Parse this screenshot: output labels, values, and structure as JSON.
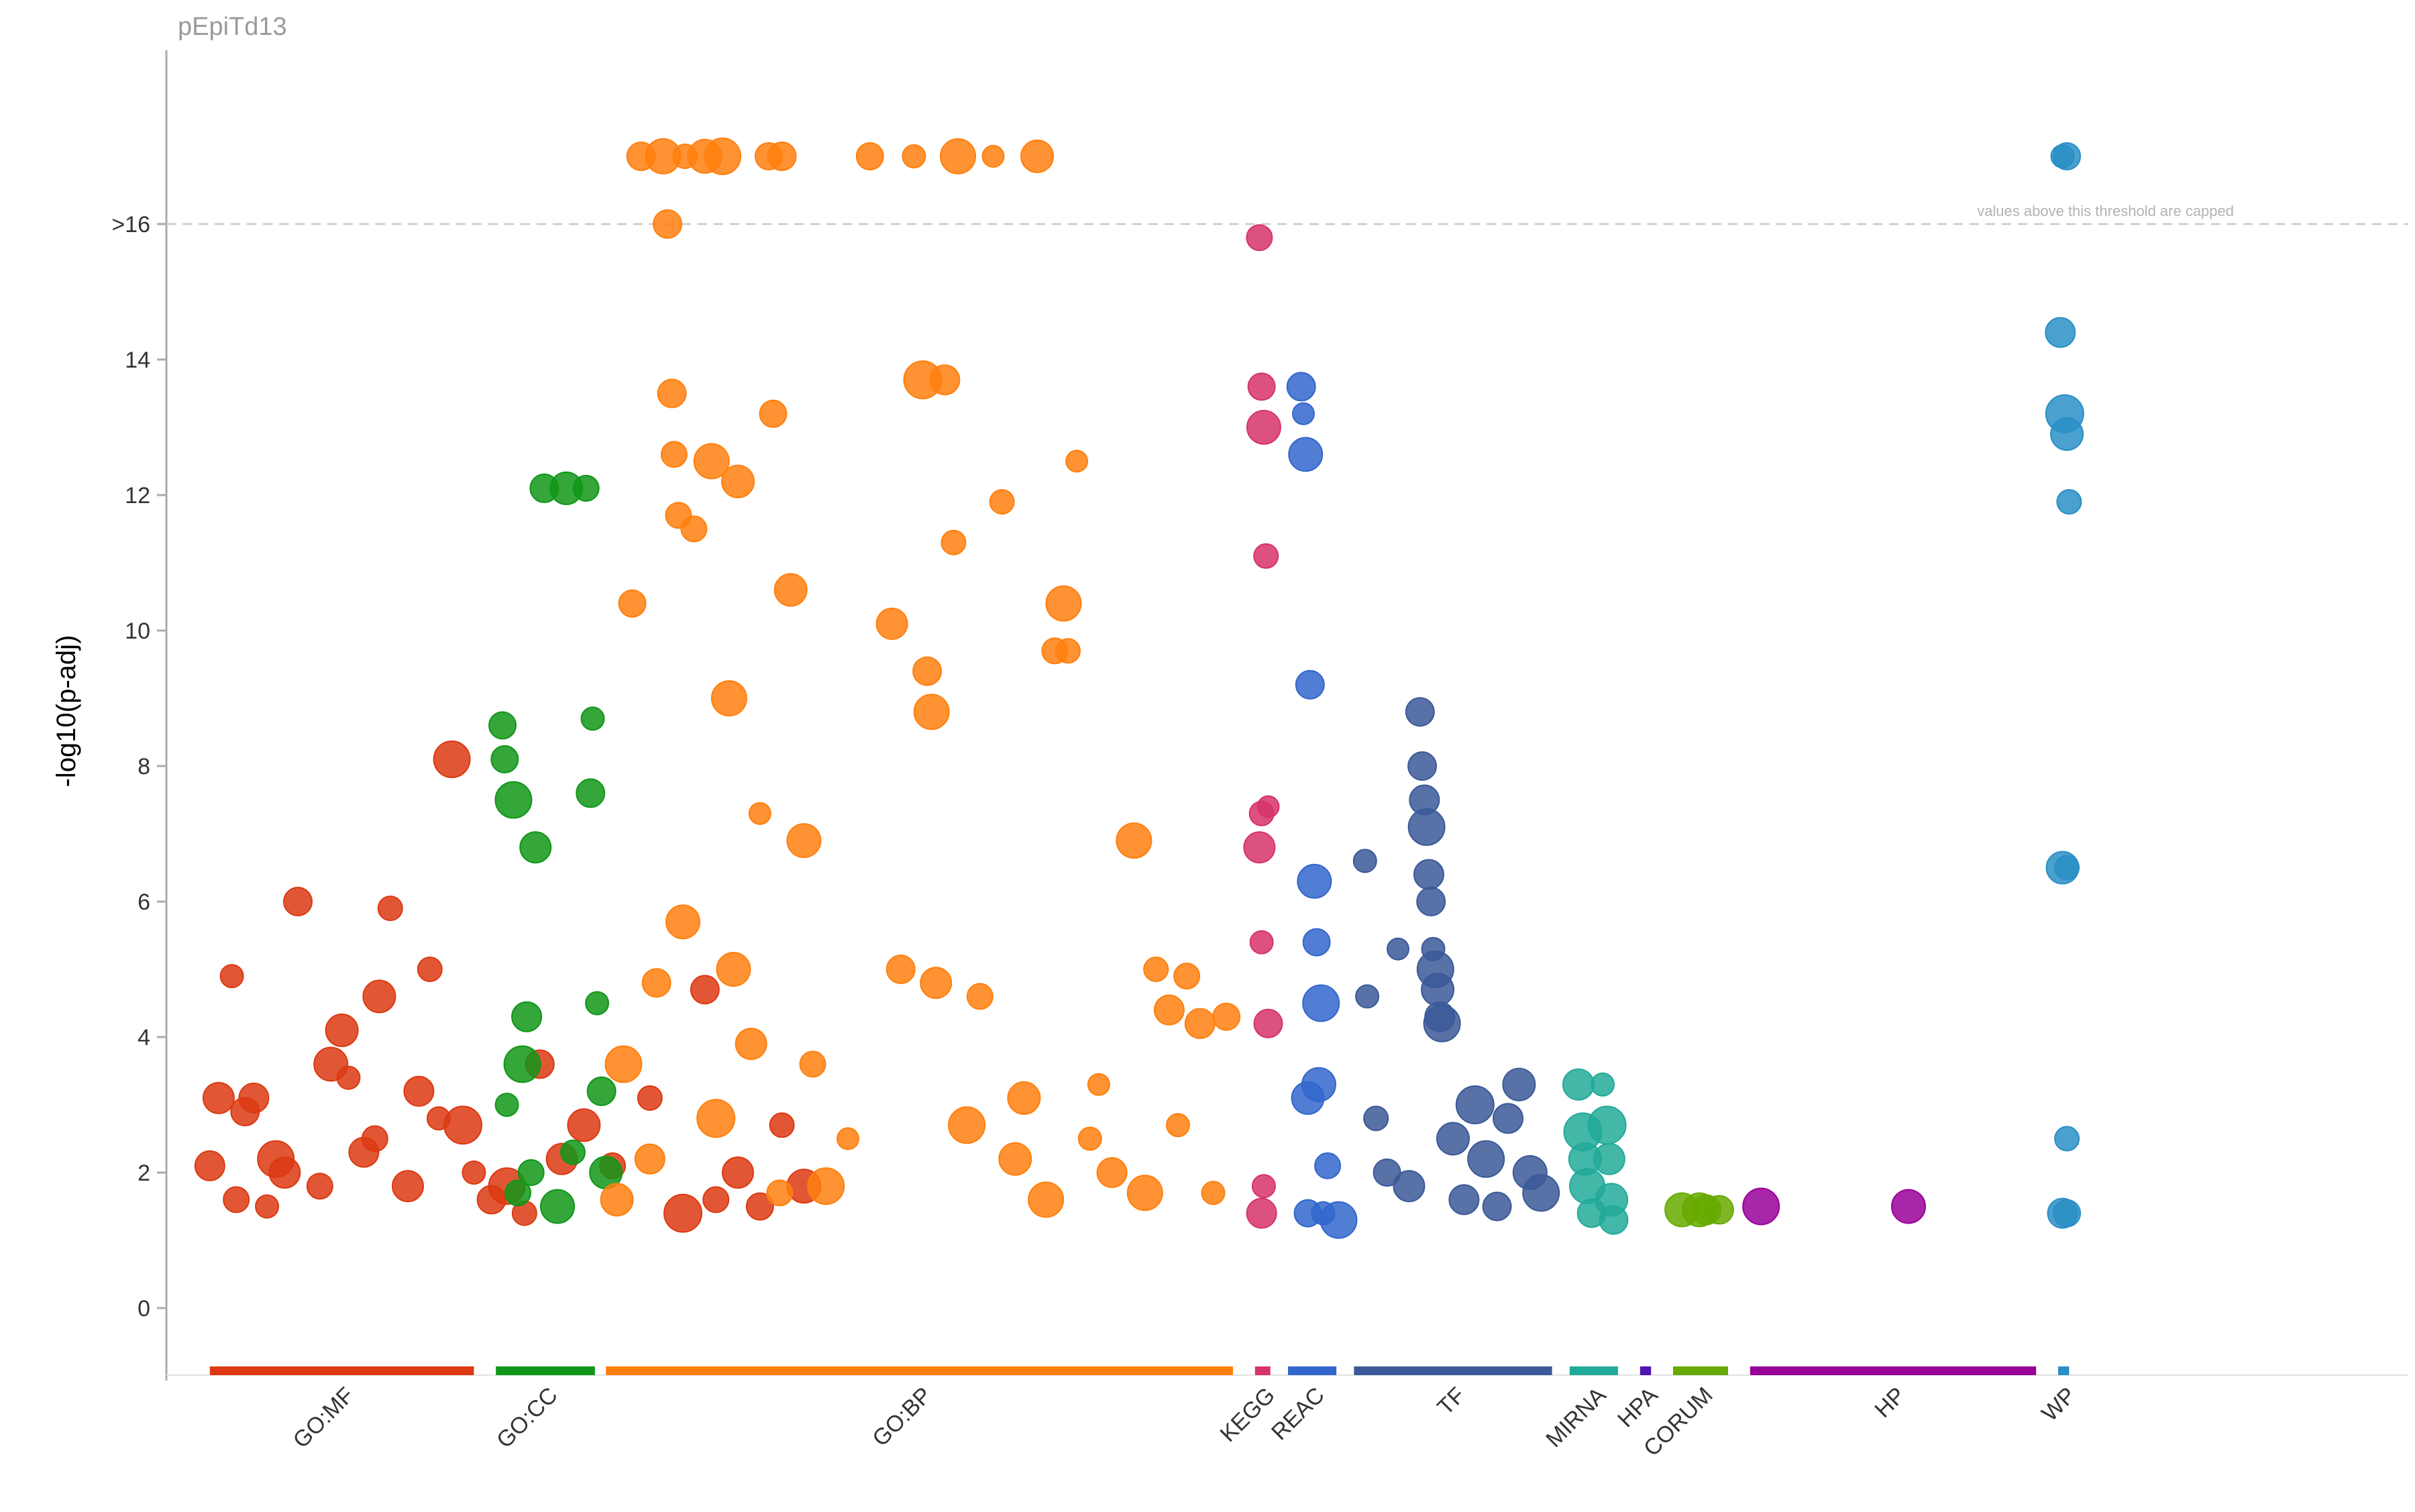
{
  "chart_data": {
    "type": "scatter",
    "title": "pEpiTd13",
    "ylabel": "-log10(p-adj)",
    "xlabel": "",
    "ylim": [
      -1,
      18
    ],
    "y_ticks": [
      0,
      2,
      4,
      6,
      8,
      10,
      12,
      14,
      16
    ],
    "y_tick_labels": [
      "0",
      "2",
      "4",
      "6",
      "8",
      "10",
      "12",
      "14",
      ">16"
    ],
    "threshold": {
      "value": 16,
      "label": "values above this threshold are capped",
      "style": "dashed"
    },
    "grid": false,
    "legend": "none",
    "x_range": [
      0,
      100
    ],
    "sources": [
      {
        "name": "GO:MF",
        "color": "#dc3912",
        "x_start": 1,
        "x_end": 13,
        "points": [
          [
            1,
            2.1
          ],
          [
            1.4,
            3.1
          ],
          [
            2,
            4.9
          ],
          [
            2.2,
            1.6
          ],
          [
            2.6,
            2.9
          ],
          [
            3,
            3.1
          ],
          [
            3.6,
            1.5
          ],
          [
            4,
            2.2
          ],
          [
            4.4,
            2
          ],
          [
            5,
            6
          ],
          [
            6,
            1.8
          ],
          [
            6.5,
            3.6
          ],
          [
            7,
            4.1
          ],
          [
            7.3,
            3.4
          ],
          [
            8,
            2.3
          ],
          [
            8.5,
            2.5
          ],
          [
            8.7,
            4.6
          ],
          [
            9.2,
            5.9
          ],
          [
            10,
            1.8
          ],
          [
            10.5,
            3.2
          ],
          [
            11,
            5
          ],
          [
            11.4,
            2.8
          ],
          [
            12,
            8.1
          ],
          [
            12.5,
            2.7
          ],
          [
            13,
            2
          ],
          [
            13.8,
            1.6
          ],
          [
            14.5,
            1.8
          ],
          [
            15.3,
            1.4
          ],
          [
            16,
            3.6
          ],
          [
            17,
            2.2
          ],
          [
            18,
            2.7
          ],
          [
            19.3,
            2.1
          ],
          [
            21,
            3.1
          ],
          [
            22.5,
            1.4
          ],
          [
            23.5,
            4.7
          ],
          [
            24,
            1.6
          ],
          [
            25,
            2
          ],
          [
            26,
            1.5
          ],
          [
            27,
            2.7
          ],
          [
            28,
            1.8
          ]
        ]
      },
      {
        "name": "GO:CC",
        "color": "#109618",
        "x_start": 14,
        "x_end": 18.5,
        "points": [
          [
            14.3,
            8.6
          ],
          [
            14.4,
            8.1
          ],
          [
            14.5,
            3
          ],
          [
            14.8,
            7.5
          ],
          [
            15,
            1.7
          ],
          [
            15.2,
            3.6
          ],
          [
            15.4,
            4.3
          ],
          [
            15.6,
            2
          ],
          [
            15.8,
            6.8
          ],
          [
            16.2,
            12.1
          ],
          [
            16.8,
            1.5
          ],
          [
            17.2,
            12.1
          ],
          [
            17.5,
            2.3
          ],
          [
            18.1,
            12.1
          ],
          [
            18.3,
            7.6
          ],
          [
            18.4,
            8.7
          ],
          [
            18.6,
            4.5
          ],
          [
            18.8,
            3.2
          ],
          [
            19,
            2
          ]
        ]
      },
      {
        "name": "GO:BP",
        "color": "#ff7f0e",
        "x_start": 19,
        "x_end": 47.5,
        "points": [
          [
            19.5,
            1.6
          ],
          [
            19.8,
            3.6
          ],
          [
            20.2,
            10.4
          ],
          [
            20.6,
            17
          ],
          [
            21,
            2.2
          ],
          [
            21.3,
            4.8
          ],
          [
            21.6,
            17
          ],
          [
            21.8,
            16
          ],
          [
            22,
            13.5
          ],
          [
            22.1,
            12.6
          ],
          [
            22.3,
            11.7
          ],
          [
            22.5,
            5.7
          ],
          [
            22.6,
            17
          ],
          [
            23,
            11.5
          ],
          [
            23.5,
            17
          ],
          [
            23.8,
            12.5
          ],
          [
            24,
            2.8
          ],
          [
            24.3,
            17
          ],
          [
            24.6,
            9
          ],
          [
            24.8,
            5
          ],
          [
            25,
            12.2
          ],
          [
            25.6,
            3.9
          ],
          [
            26,
            7.3
          ],
          [
            26.4,
            17
          ],
          [
            26.6,
            13.2
          ],
          [
            26.9,
            1.7
          ],
          [
            27,
            17
          ],
          [
            27.4,
            10.6
          ],
          [
            28,
            6.9
          ],
          [
            28.4,
            3.6
          ],
          [
            29,
            1.8
          ],
          [
            30,
            2.5
          ],
          [
            31,
            17
          ],
          [
            32,
            10.1
          ],
          [
            32.4,
            5
          ],
          [
            33,
            17
          ],
          [
            33.4,
            13.7
          ],
          [
            33.6,
            9.4
          ],
          [
            33.8,
            8.8
          ],
          [
            34,
            4.8
          ],
          [
            34.4,
            13.7
          ],
          [
            34.8,
            11.3
          ],
          [
            35,
            17
          ],
          [
            35.4,
            2.7
          ],
          [
            36,
            4.6
          ],
          [
            36.6,
            17
          ],
          [
            37,
            11.9
          ],
          [
            37.6,
            2.2
          ],
          [
            38,
            3.1
          ],
          [
            38.6,
            17
          ],
          [
            39,
            1.6
          ],
          [
            39.4,
            9.7
          ],
          [
            39.8,
            10.4
          ],
          [
            40,
            9.7
          ],
          [
            40.4,
            12.5
          ],
          [
            41,
            2.5
          ],
          [
            41.4,
            3.3
          ],
          [
            42,
            2
          ],
          [
            43,
            6.9
          ],
          [
            43.5,
            1.7
          ],
          [
            44,
            5
          ],
          [
            44.6,
            4.4
          ],
          [
            45,
            2.7
          ],
          [
            45.4,
            4.9
          ],
          [
            46,
            4.2
          ],
          [
            46.6,
            1.7
          ],
          [
            47.2,
            4.3
          ]
        ]
      },
      {
        "name": "KEGG",
        "color": "#d6336c",
        "x_start": 48.5,
        "x_end": 49.2,
        "points": [
          [
            48.7,
            15.8
          ],
          [
            48.8,
            13.6
          ],
          [
            48.9,
            13
          ],
          [
            49,
            11.1
          ],
          [
            48.8,
            7.3
          ],
          [
            49.1,
            7.4
          ],
          [
            48.7,
            6.8
          ],
          [
            48.8,
            5.4
          ],
          [
            49.1,
            4.2
          ],
          [
            48.9,
            1.8
          ],
          [
            48.8,
            1.4
          ]
        ]
      },
      {
        "name": "REAC",
        "color": "#3366cc",
        "x_start": 50,
        "x_end": 52.2,
        "points": [
          [
            50.6,
            13.6
          ],
          [
            50.7,
            13.2
          ],
          [
            50.8,
            12.6
          ],
          [
            51,
            9.2
          ],
          [
            51.2,
            6.3
          ],
          [
            51.3,
            5.4
          ],
          [
            51.5,
            4.5
          ],
          [
            51.4,
            3.3
          ],
          [
            50.9,
            3.1
          ],
          [
            51.8,
            2.1
          ],
          [
            50.9,
            1.4
          ],
          [
            51.6,
            1.4
          ],
          [
            52.3,
            1.3
          ]
        ]
      },
      {
        "name": "TF",
        "color": "#3b5998",
        "x_start": 53,
        "x_end": 62,
        "points": [
          [
            53.5,
            6.6
          ],
          [
            53.6,
            4.6
          ],
          [
            54,
            2.8
          ],
          [
            54.5,
            2
          ],
          [
            55,
            5.3
          ],
          [
            55.5,
            1.8
          ],
          [
            56,
            8.8
          ],
          [
            56.1,
            8
          ],
          [
            56.2,
            7.5
          ],
          [
            56.3,
            7.1
          ],
          [
            56.4,
            6.4
          ],
          [
            56.5,
            6
          ],
          [
            56.6,
            5.3
          ],
          [
            56.7,
            5
          ],
          [
            56.8,
            4.7
          ],
          [
            56.9,
            4.3
          ],
          [
            57,
            4.2
          ],
          [
            57.5,
            2.5
          ],
          [
            58,
            1.6
          ],
          [
            58.5,
            3
          ],
          [
            59,
            2.2
          ],
          [
            59.5,
            1.5
          ],
          [
            60,
            2.8
          ],
          [
            60.5,
            3.3
          ],
          [
            61,
            2
          ],
          [
            61.5,
            1.7
          ]
        ]
      },
      {
        "name": "MIRNA",
        "color": "#22aa99",
        "x_start": 62.8,
        "x_end": 65,
        "points": [
          [
            63.2,
            3.3
          ],
          [
            63.4,
            2.6
          ],
          [
            63.5,
            2.2
          ],
          [
            63.6,
            1.8
          ],
          [
            63.8,
            1.4
          ],
          [
            64.3,
            3.3
          ],
          [
            64.5,
            2.7
          ],
          [
            64.6,
            2.2
          ],
          [
            64.7,
            1.6
          ],
          [
            64.8,
            1.3
          ]
        ]
      },
      {
        "name": "HPA",
        "color": "#5014b4",
        "x_start": 66,
        "x_end": 66.5,
        "points": []
      },
      {
        "name": "CORUM",
        "color": "#66aa00",
        "x_start": 67.5,
        "x_end": 70,
        "points": [
          [
            67.9,
            1.45
          ],
          [
            68.7,
            1.45
          ],
          [
            69,
            1.45
          ],
          [
            69.6,
            1.45
          ]
        ]
      },
      {
        "name": "HP",
        "color": "#990099",
        "x_start": 71,
        "x_end": 84,
        "points": [
          [
            71.5,
            1.5
          ],
          [
            78.2,
            1.5
          ]
        ]
      },
      {
        "name": "WP",
        "color": "#2a8fc6",
        "x_start": 85,
        "x_end": 85.5,
        "points": [
          [
            85.2,
            17
          ],
          [
            85.4,
            17
          ],
          [
            85.1,
            14.4
          ],
          [
            85.3,
            13.2
          ],
          [
            85.4,
            12.9
          ],
          [
            85.5,
            11.9
          ],
          [
            85.2,
            6.5
          ],
          [
            85.4,
            6.5
          ],
          [
            85.4,
            2.5
          ],
          [
            85.2,
            1.4
          ],
          [
            85.4,
            1.4
          ]
        ]
      }
    ]
  }
}
